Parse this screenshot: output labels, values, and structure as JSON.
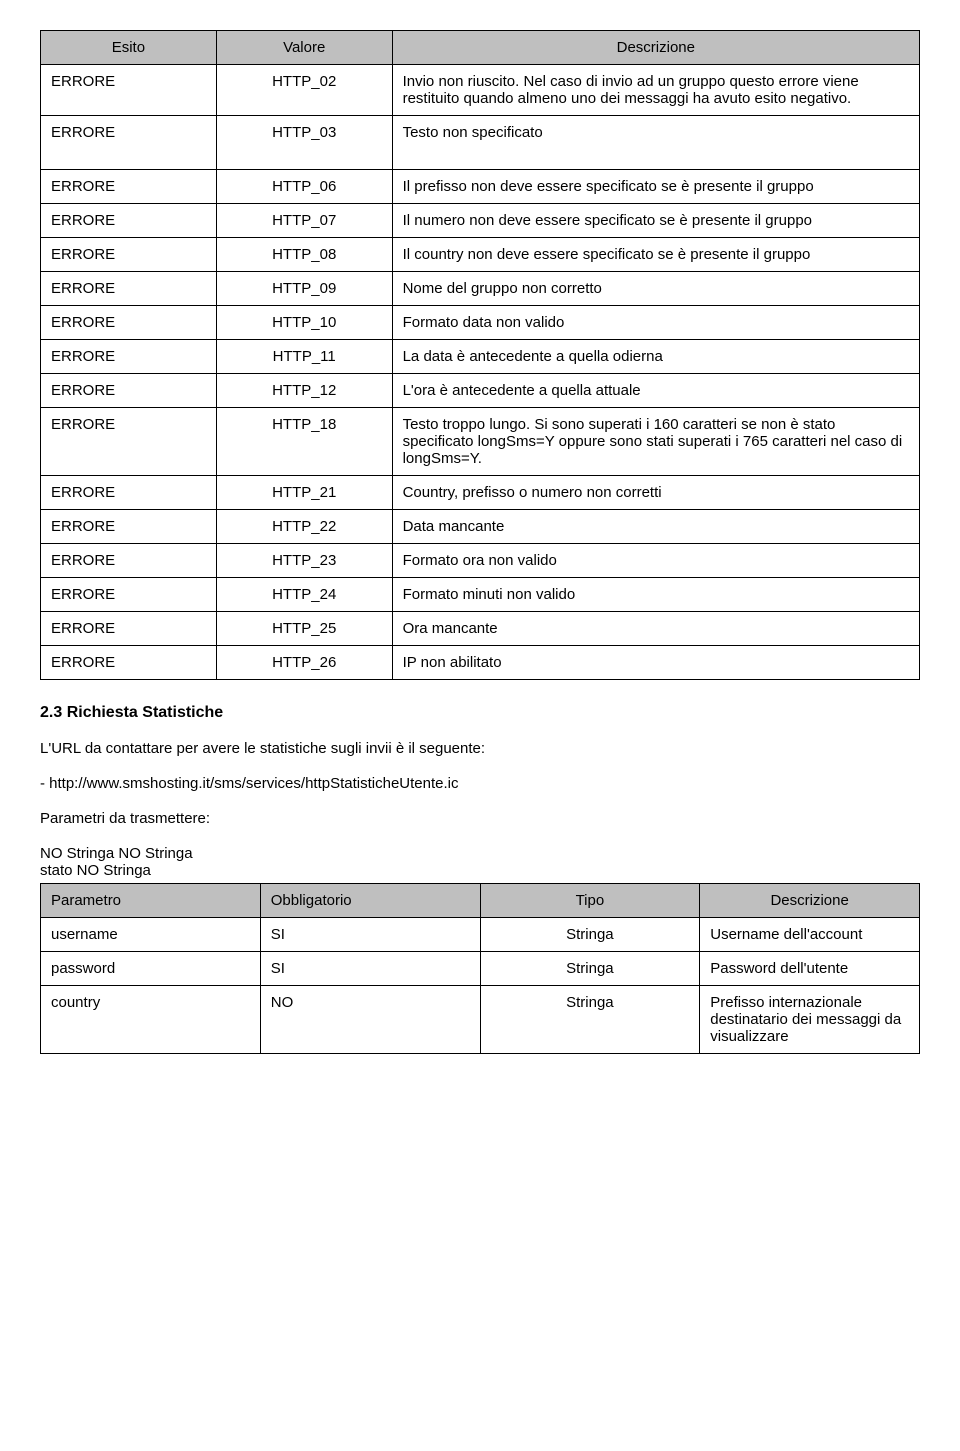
{
  "table1": {
    "headers": [
      "Esito",
      "Valore",
      "Descrizione"
    ],
    "rows": [
      [
        "ERRORE",
        "HTTP_02",
        "Invio non riuscito. Nel caso di invio ad un gruppo questo errore viene restituito quando almeno uno dei messaggi ha avuto esito negativo."
      ],
      [
        "ERRORE",
        "HTTP_03",
        "Testo non specificato"
      ],
      [
        "ERRORE",
        "HTTP_06",
        "Il prefisso non deve essere specificato se è presente il gruppo"
      ],
      [
        "ERRORE",
        "HTTP_07",
        "Il numero non deve essere specificato se è presente il gruppo"
      ],
      [
        "ERRORE",
        "HTTP_08",
        "Il country non deve essere specificato se è presente il gruppo"
      ],
      [
        "ERRORE",
        "HTTP_09",
        "Nome del gruppo non corretto"
      ],
      [
        "ERRORE",
        "HTTP_10",
        "Formato data non valido"
      ],
      [
        "ERRORE",
        "HTTP_11",
        "La data è antecedente a quella odierna"
      ],
      [
        "ERRORE",
        "HTTP_12",
        "L'ora è antecedente a quella attuale"
      ],
      [
        "ERRORE",
        "HTTP_18",
        "Testo troppo lungo. Si sono superati i 160 caratteri se non è stato specificato longSms=Y oppure sono stati superati i 765 caratteri nel caso di longSms=Y."
      ],
      [
        "ERRORE",
        "HTTP_21",
        "Country, prefisso o numero non corretti"
      ],
      [
        "ERRORE",
        "HTTP_22",
        "Data mancante"
      ],
      [
        "ERRORE",
        "HTTP_23",
        "Formato ora non valido"
      ],
      [
        "ERRORE",
        "HTTP_24",
        "Formato minuti non valido"
      ],
      [
        "ERRORE",
        "HTTP_25",
        "Ora mancante"
      ],
      [
        "ERRORE",
        "HTTP_26",
        "IP non abilitato"
      ]
    ]
  },
  "section": {
    "heading": "2.3 Richiesta Statistiche",
    "line1": "L'URL da contattare per avere le statistiche sugli invii è il seguente:",
    "line2": "- http://www.smshosting.it/sms/services/httpStatisticheUtente.ic",
    "line3": "Parametri da trasmettere:",
    "line4": "NO Stringa NO Stringa",
    "line5": "stato NO Stringa"
  },
  "table2": {
    "headers": [
      "Parametro",
      "Obbligatorio",
      "Tipo",
      "Descrizione"
    ],
    "rows": [
      [
        "username",
        "SI",
        "Stringa",
        "Username dell'account"
      ],
      [
        "password",
        "SI",
        "Stringa",
        "Password dell'utente"
      ],
      [
        "country",
        "NO",
        "Stringa",
        "Prefisso internazionale destinatario dei messaggi da visualizzare"
      ]
    ]
  },
  "colors": {
    "header_bg": "#bfbfbf",
    "border": "#000000",
    "background": "#ffffff",
    "text": "#000000"
  }
}
